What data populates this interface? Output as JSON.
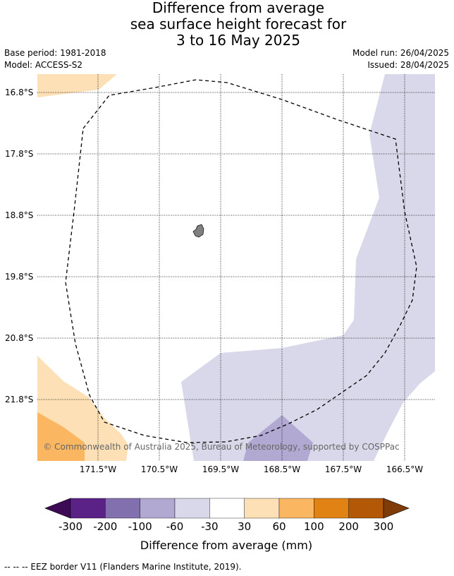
{
  "title": {
    "line1": "Difference from average",
    "line2": "sea surface height forecast for",
    "line3": "3 to 16 May 2025"
  },
  "meta": {
    "base_period": "Base period: 1981-2018",
    "model": "Model: ACCESS-S2",
    "model_run": "Model run: 26/04/2025",
    "issued": "Issued: 28/04/2025"
  },
  "map": {
    "lat_labels": [
      "16.8°S",
      "17.8°S",
      "18.8°S",
      "19.8°S",
      "20.8°S",
      "21.8°S"
    ],
    "lon_labels": [
      "171.5°W",
      "170.5°W",
      "169.5°W",
      "168.5°W",
      "167.5°W",
      "166.5°W"
    ],
    "copyright": "© Commonwealth of Australia 2025, Bureau of Meteorology, supported by COSPPac",
    "colors": {
      "light_orange": "#fde0b6",
      "orange": "#fbb661",
      "light_purple": "#d8d8ea",
      "purple": "#b1a9d2",
      "island": "#808080"
    }
  },
  "colorbar": {
    "ticks": [
      "-300",
      "-200",
      "-100",
      "-60",
      "-30",
      "30",
      "60",
      "100",
      "200",
      "300"
    ],
    "colors": [
      "#3d0a55",
      "#5a2187",
      "#8270ae",
      "#b1a9d2",
      "#d8d8ea",
      "#ffffff",
      "#fde0b6",
      "#fbb661",
      "#e08214",
      "#b35806",
      "#7f3b08"
    ],
    "label": "Difference from average (mm)"
  },
  "footnote": "--  --  -- EEZ border V11 (Flanders Marine Institute, 2019)."
}
